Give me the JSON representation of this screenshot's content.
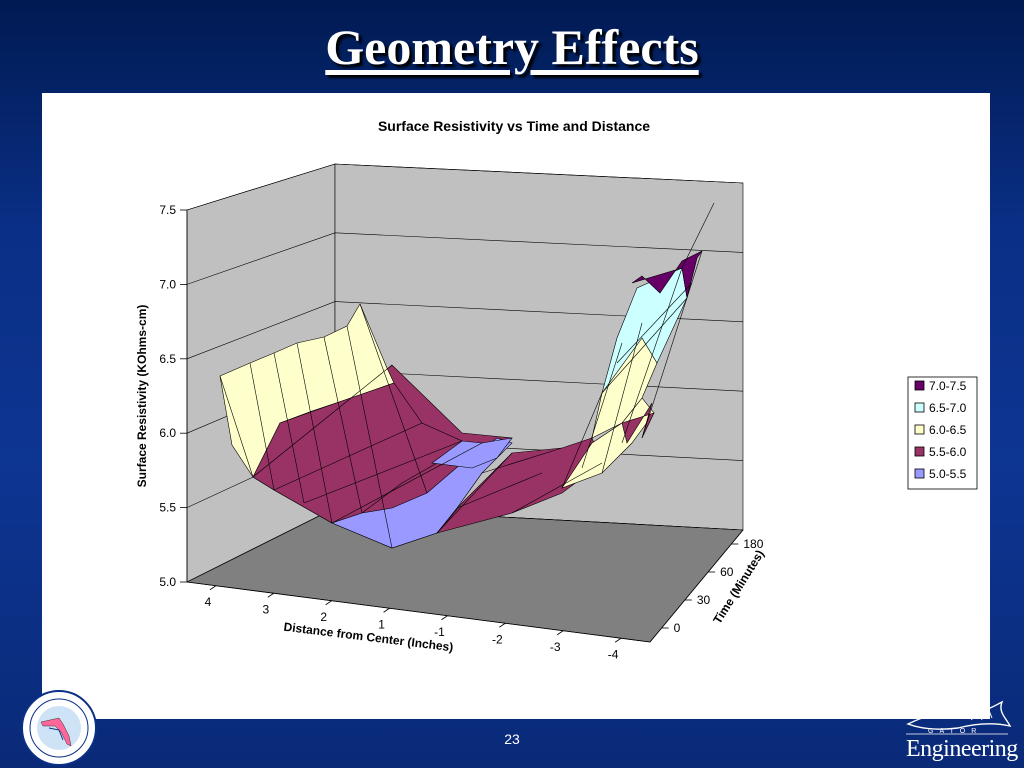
{
  "slide": {
    "title": "Geometry Effects",
    "page_number": "23"
  },
  "logos": {
    "fdot_seal": "fdot-seal-logo",
    "gator_engineering": "Engineering",
    "gator_small": "GATOR"
  },
  "chart_data": {
    "type": "surface3d",
    "title": "Surface Resistivity vs Time and Distance",
    "xlabel": "Distance from Center (Inches)",
    "ylabel": "Time (Minutes)",
    "zlabel": "Surface Resistivity (KOhms-cm)",
    "x_ticks": [
      "4",
      "3",
      "2",
      "1",
      "-1",
      "-2",
      "-3",
      "-4"
    ],
    "y_ticks": [
      "0",
      "30",
      "60",
      "180"
    ],
    "z_ticks": [
      "5.0",
      "5.5",
      "6.0",
      "6.5",
      "7.0",
      "7.5"
    ],
    "zlim": [
      5.0,
      7.5
    ],
    "legend": {
      "position": "right",
      "entries": [
        {
          "label": "7.0-7.5",
          "color": "#660066"
        },
        {
          "label": "6.5-7.0",
          "color": "#ccffff"
        },
        {
          "label": "6.0-6.5",
          "color": "#ffffcc"
        },
        {
          "label": "5.5-6.0",
          "color": "#993366"
        },
        {
          "label": "5.0-5.5",
          "color": "#9999ff"
        }
      ]
    },
    "colors": {
      "wall": "#c0c0c0",
      "floor": "#808080",
      "band_5_0": "#9999ff",
      "band_5_5": "#993366",
      "band_6_0": "#ffffcc",
      "band_6_5": "#ccffff",
      "band_7_0": "#660066"
    }
  }
}
